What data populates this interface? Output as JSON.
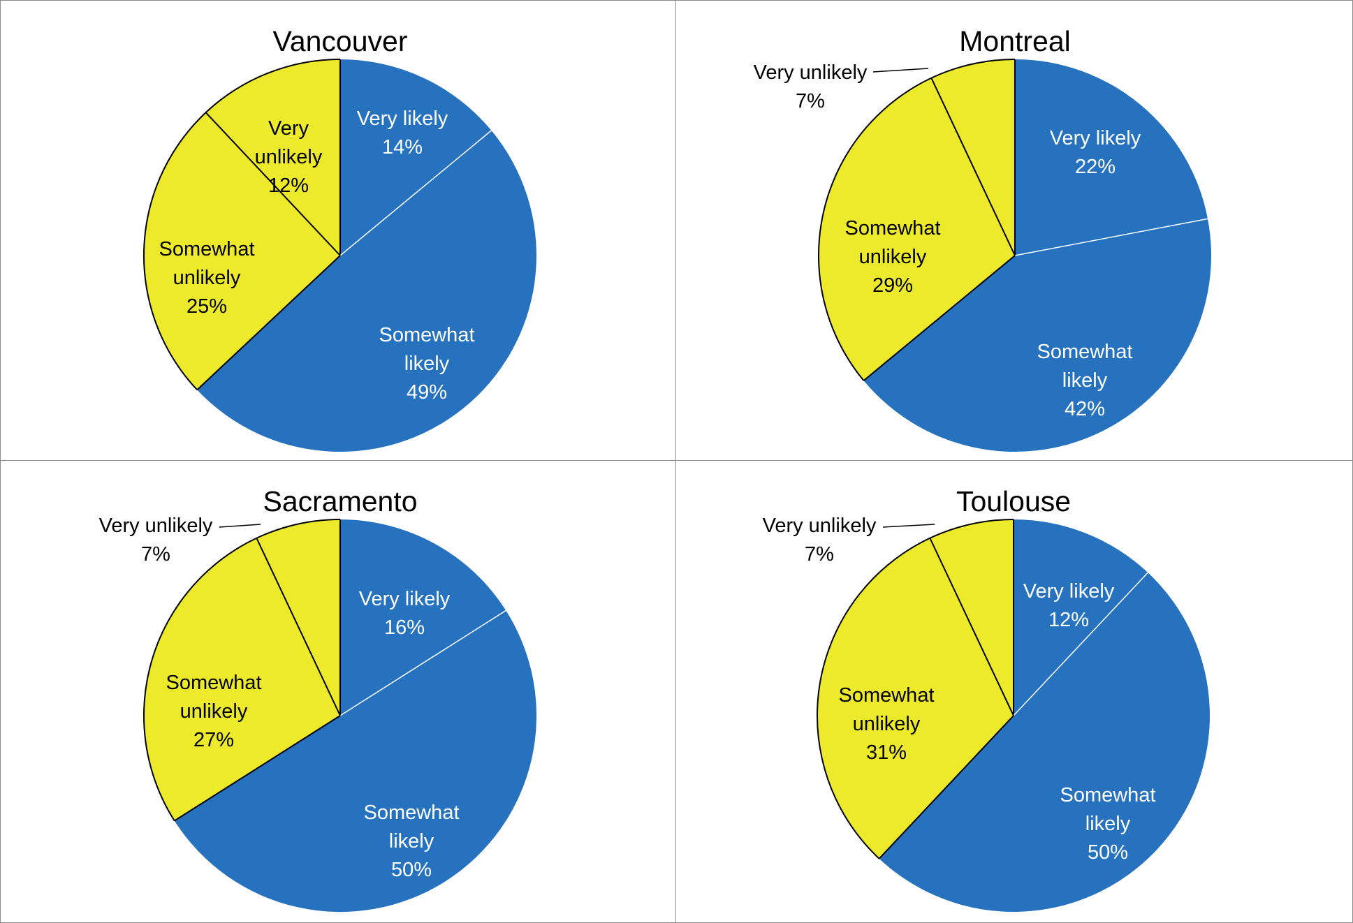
{
  "colors": {
    "likely": "#2672BF",
    "unlikely": "#EDEA2B",
    "likely_text": "#FFFFFF",
    "unlikely_text": "#000000"
  },
  "chart_data": [
    {
      "type": "pie",
      "title": "Vancouver",
      "slices": [
        {
          "label": "Very likely",
          "value": 14,
          "value_label": "14%",
          "color": "#2672BF"
        },
        {
          "label": "Somewhat likely",
          "value": 49,
          "value_label": "49%",
          "color": "#2672BF"
        },
        {
          "label": "Somewhat unlikely",
          "value": 25,
          "value_label": "25%",
          "color": "#EDEA2B"
        },
        {
          "label": "Very unlikely",
          "value": 12,
          "value_label": "12%",
          "color": "#EDEA2B"
        }
      ]
    },
    {
      "type": "pie",
      "title": "Montreal",
      "slices": [
        {
          "label": "Very likely",
          "value": 22,
          "value_label": "22%",
          "color": "#2672BF"
        },
        {
          "label": "Somewhat likely",
          "value": 42,
          "value_label": "42%",
          "color": "#2672BF"
        },
        {
          "label": "Somewhat unlikely",
          "value": 29,
          "value_label": "29%",
          "color": "#EDEA2B"
        },
        {
          "label": "Very unlikely",
          "value": 7,
          "value_label": "7%",
          "color": "#EDEA2B"
        }
      ]
    },
    {
      "type": "pie",
      "title": "Sacramento",
      "slices": [
        {
          "label": "Very likely",
          "value": 16,
          "value_label": "16%",
          "color": "#2672BF"
        },
        {
          "label": "Somewhat likely",
          "value": 50,
          "value_label": "50%",
          "color": "#2672BF"
        },
        {
          "label": "Somewhat unlikely",
          "value": 27,
          "value_label": "27%",
          "color": "#EDEA2B"
        },
        {
          "label": "Very unlikely",
          "value": 7,
          "value_label": "7%",
          "color": "#EDEA2B"
        }
      ]
    },
    {
      "type": "pie",
      "title": "Toulouse",
      "slices": [
        {
          "label": "Very likely",
          "value": 12,
          "value_label": "12%",
          "color": "#2672BF"
        },
        {
          "label": "Somewhat likely",
          "value": 50,
          "value_label": "50%",
          "color": "#2672BF"
        },
        {
          "label": "Somewhat unlikely",
          "value": 31,
          "value_label": "31%",
          "color": "#EDEA2B"
        },
        {
          "label": "Very unlikely",
          "value": 7,
          "value_label": "7%",
          "color": "#EDEA2B"
        }
      ]
    }
  ]
}
